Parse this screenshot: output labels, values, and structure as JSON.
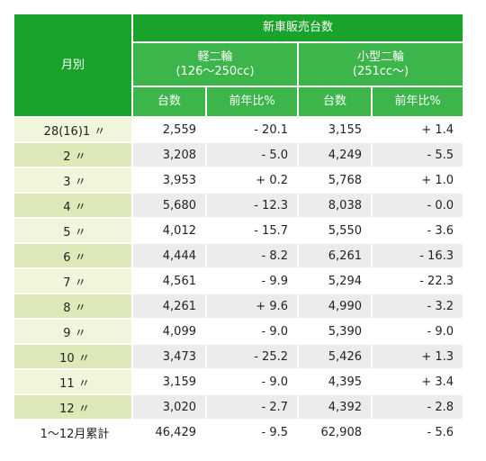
{
  "header": {
    "month_label": "月別",
    "group_title": "新車販売台数",
    "categories": [
      {
        "name": "軽二輪",
        "range": "(126～250cc)"
      },
      {
        "name": "小型二輪",
        "range": "(251cc～)"
      }
    ],
    "sub_units": "台数",
    "sub_ratio": "前年比%"
  },
  "rows": [
    {
      "month": "28(16)1 〃",
      "k_units": "2,559",
      "k_ratio": "- 20.1",
      "s_units": "3,155",
      "s_ratio": "+ 1.4"
    },
    {
      "month": "2 〃",
      "k_units": "3,208",
      "k_ratio": "- 5.0",
      "s_units": "4,249",
      "s_ratio": "- 5.5"
    },
    {
      "month": "3 〃",
      "k_units": "3,953",
      "k_ratio": "+ 0.2",
      "s_units": "5,768",
      "s_ratio": "+ 1.0"
    },
    {
      "month": "4 〃",
      "k_units": "5,680",
      "k_ratio": "- 12.3",
      "s_units": "8,038",
      "s_ratio": "- 0.0"
    },
    {
      "month": "5 〃",
      "k_units": "4,012",
      "k_ratio": "- 15.7",
      "s_units": "5,550",
      "s_ratio": "- 3.6"
    },
    {
      "month": "6 〃",
      "k_units": "4,444",
      "k_ratio": "- 8.2",
      "s_units": "6,261",
      "s_ratio": "- 16.3"
    },
    {
      "month": "7 〃",
      "k_units": "4,561",
      "k_ratio": "- 9.9",
      "s_units": "5,294",
      "s_ratio": "- 22.3"
    },
    {
      "month": "8 〃",
      "k_units": "4,261",
      "k_ratio": "+ 9.6",
      "s_units": "4,990",
      "s_ratio": "- 3.2"
    },
    {
      "month": "9 〃",
      "k_units": "4,099",
      "k_ratio": "- 9.0",
      "s_units": "5,390",
      "s_ratio": "- 9.0"
    },
    {
      "month": "10 〃",
      "k_units": "3,473",
      "k_ratio": "- 25.2",
      "s_units": "5,426",
      "s_ratio": "+ 1.3"
    },
    {
      "month": "11 〃",
      "k_units": "3,159",
      "k_ratio": "- 9.0",
      "s_units": "4,395",
      "s_ratio": "+ 3.4"
    },
    {
      "month": "12 〃",
      "k_units": "3,020",
      "k_ratio": "- 2.7",
      "s_units": "4,392",
      "s_ratio": "- 2.8"
    },
    {
      "month": "1～12月累計",
      "k_units": "46,429",
      "k_ratio": "- 9.5",
      "s_units": "62,908",
      "s_ratio": "- 5.6"
    }
  ],
  "colors": {
    "header_dark": "#1aa32a",
    "header_mid": "#3cb54a",
    "month_light": "#f1f5dc",
    "month_dark": "#dde9b8",
    "row_alt": "#ececec"
  }
}
